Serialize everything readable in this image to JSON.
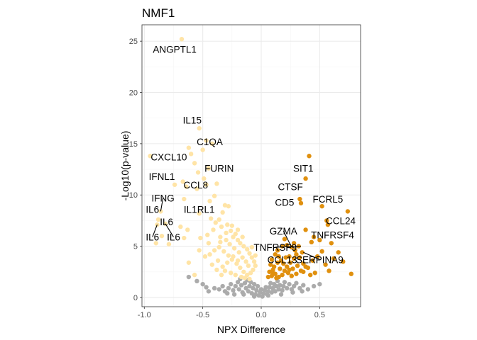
{
  "chart_data": {
    "type": "scatter",
    "title": "NMF1",
    "xlabel": "NPX Difference",
    "ylabel": "-Log10(p-value)",
    "xlim": [
      -1.02,
      0.85
    ],
    "ylim": [
      -0.9,
      26.6
    ],
    "x_ticks": [
      -1.0,
      -0.5,
      0.0,
      0.5
    ],
    "x_tick_labels": [
      "-1.0",
      "-0.5",
      "0.0",
      "0.5"
    ],
    "y_ticks": [
      0,
      5,
      10,
      15,
      20,
      25
    ],
    "y_tick_labels": [
      "0",
      "5",
      "10",
      "15",
      "20",
      "25"
    ],
    "grid": true,
    "legend": "none",
    "colors": {
      "down": "#FFE4A6",
      "up": "#E0900E",
      "ns": "#ABABAB"
    },
    "series": [
      {
        "group": "up",
        "points": [
          [
            0.41,
            13.8
          ],
          [
            0.38,
            11.6
          ],
          [
            0.33,
            9.6
          ],
          [
            0.34,
            9.2
          ],
          [
            0.52,
            8.9
          ],
          [
            0.56,
            7.5
          ],
          [
            0.57,
            7.1
          ],
          [
            0.74,
            8.4
          ],
          [
            0.38,
            6.6
          ],
          [
            0.45,
            5.9
          ],
          [
            0.5,
            5.6
          ],
          [
            0.6,
            5.3
          ],
          [
            0.43,
            5.4
          ],
          [
            0.32,
            5.0
          ],
          [
            0.28,
            5.3
          ],
          [
            0.26,
            4.9
          ],
          [
            0.2,
            5.7
          ],
          [
            0.18,
            5.0
          ],
          [
            0.14,
            4.6
          ],
          [
            0.12,
            4.2
          ],
          [
            0.09,
            3.7
          ],
          [
            0.08,
            3.2
          ],
          [
            0.1,
            2.7
          ],
          [
            0.12,
            2.3
          ],
          [
            0.15,
            2.0
          ],
          [
            0.18,
            2.2
          ],
          [
            0.2,
            2.6
          ],
          [
            0.22,
            3.0
          ],
          [
            0.25,
            3.4
          ],
          [
            0.28,
            3.8
          ],
          [
            0.3,
            4.2
          ],
          [
            0.33,
            3.9
          ],
          [
            0.36,
            3.3
          ],
          [
            0.4,
            2.9
          ],
          [
            0.44,
            3.6
          ],
          [
            0.48,
            4.0
          ],
          [
            0.52,
            4.5
          ],
          [
            0.55,
            3.2
          ],
          [
            0.58,
            2.6
          ],
          [
            0.62,
            3.8
          ],
          [
            0.66,
            4.4
          ],
          [
            0.7,
            3.5
          ],
          [
            0.77,
            2.3
          ],
          [
            0.46,
            2.4
          ],
          [
            0.42,
            2.2
          ],
          [
            0.36,
            2.5
          ],
          [
            0.3,
            2.3
          ],
          [
            0.26,
            2.1
          ],
          [
            0.23,
            2.4
          ],
          [
            0.16,
            2.8
          ],
          [
            0.14,
            3.4
          ],
          [
            0.11,
            3.0
          ],
          [
            0.07,
            2.5
          ],
          [
            0.09,
            2.1
          ],
          [
            0.13,
            1.9
          ],
          [
            0.24,
            4.0
          ],
          [
            0.29,
            4.6
          ],
          [
            0.35,
            4.4
          ],
          [
            0.19,
            3.3
          ],
          [
            0.21,
            3.9
          ],
          [
            0.17,
            3.6
          ],
          [
            0.27,
            2.8
          ],
          [
            0.31,
            3.1
          ],
          [
            0.38,
            3.0
          ],
          [
            0.06,
            2.0
          ],
          [
            0.1,
            2.4
          ],
          [
            0.22,
            5.1
          ],
          [
            0.15,
            4.0
          ],
          [
            0.34,
            2.6
          ],
          [
            0.24,
            2.7
          ]
        ]
      },
      {
        "group": "down",
        "points": [
          [
            -0.68,
            25.2
          ],
          [
            -0.53,
            16.5
          ],
          [
            -0.47,
            15.3
          ],
          [
            -0.42,
            15.0
          ],
          [
            -0.62,
            14.6
          ],
          [
            -0.5,
            14.4
          ],
          [
            -0.6,
            14.0
          ],
          [
            -0.95,
            13.8
          ],
          [
            -0.57,
            13.1
          ],
          [
            -0.45,
            12.6
          ],
          [
            -0.54,
            12.2
          ],
          [
            -0.49,
            11.6
          ],
          [
            -0.47,
            11.0
          ],
          [
            -0.67,
            11.3
          ],
          [
            -0.74,
            11.0
          ],
          [
            -0.64,
            10.8
          ],
          [
            -0.55,
            10.6
          ],
          [
            -0.38,
            11.1
          ],
          [
            -0.66,
            9.6
          ],
          [
            -0.4,
            9.9
          ],
          [
            -0.44,
            9.4
          ],
          [
            -0.31,
            9.0
          ],
          [
            -0.28,
            8.9
          ],
          [
            -0.86,
            8.4
          ],
          [
            -0.53,
            8.2
          ],
          [
            -0.33,
            8.3
          ],
          [
            -0.88,
            7.6
          ],
          [
            -0.82,
            7.2
          ],
          [
            -0.89,
            7.1
          ],
          [
            -0.69,
            6.9
          ],
          [
            -0.63,
            6.6
          ],
          [
            -0.43,
            7.7
          ],
          [
            -0.39,
            7.3
          ],
          [
            -0.36,
            7.6
          ],
          [
            -0.34,
            6.9
          ],
          [
            -0.41,
            6.6
          ],
          [
            -0.29,
            7.1
          ],
          [
            -0.26,
            6.5
          ],
          [
            -0.22,
            6.2
          ],
          [
            -0.46,
            6.1
          ],
          [
            -0.52,
            5.8
          ],
          [
            -0.66,
            5.8
          ],
          [
            -0.85,
            6.0
          ],
          [
            -0.9,
            5.3
          ],
          [
            -0.79,
            5.2
          ],
          [
            -0.35,
            5.9
          ],
          [
            -0.3,
            5.6
          ],
          [
            -0.24,
            5.9
          ],
          [
            -0.2,
            5.6
          ],
          [
            -0.18,
            5.3
          ],
          [
            -0.15,
            5.0
          ],
          [
            -0.12,
            4.7
          ],
          [
            -0.1,
            4.3
          ],
          [
            -0.08,
            3.9
          ],
          [
            -0.06,
            3.5
          ],
          [
            -0.05,
            3.1
          ],
          [
            -0.07,
            2.7
          ],
          [
            -0.09,
            2.4
          ],
          [
            -0.12,
            2.2
          ],
          [
            -0.15,
            2.5
          ],
          [
            -0.18,
            2.9
          ],
          [
            -0.21,
            3.3
          ],
          [
            -0.25,
            3.7
          ],
          [
            -0.28,
            4.1
          ],
          [
            -0.32,
            4.5
          ],
          [
            -0.36,
            4.9
          ],
          [
            -0.4,
            4.6
          ],
          [
            -0.44,
            4.2
          ],
          [
            -0.27,
            5.2
          ],
          [
            -0.23,
            4.8
          ],
          [
            -0.19,
            4.4
          ],
          [
            -0.16,
            3.9
          ],
          [
            -0.13,
            3.5
          ],
          [
            -0.11,
            3.1
          ],
          [
            -0.2,
            3.6
          ],
          [
            -0.24,
            4.0
          ],
          [
            -0.29,
            3.4
          ],
          [
            -0.33,
            3.0
          ],
          [
            -0.37,
            3.6
          ],
          [
            -0.31,
            2.6
          ],
          [
            -0.26,
            2.4
          ],
          [
            -0.22,
            2.2
          ],
          [
            -0.17,
            2.0
          ],
          [
            -0.14,
            1.9
          ],
          [
            -0.1,
            1.8
          ],
          [
            -0.62,
            3.4
          ],
          [
            -0.57,
            2.2
          ],
          [
            -0.48,
            4.0
          ],
          [
            -0.53,
            4.6
          ],
          [
            -0.42,
            3.2
          ],
          [
            -0.38,
            2.7
          ],
          [
            -0.34,
            2.2
          ],
          [
            -0.2,
            6.6
          ],
          [
            -0.25,
            7.0
          ],
          [
            -0.16,
            5.9
          ],
          [
            -0.08,
            4.9
          ],
          [
            -0.05,
            4.1
          ],
          [
            -0.3,
            6.3
          ],
          [
            -0.35,
            5.4
          ],
          [
            -0.45,
            5.3
          ]
        ]
      },
      {
        "group": "ns",
        "points": [
          [
            -0.47,
            1.0
          ],
          [
            -0.45,
            0.6
          ],
          [
            -0.4,
            0.9
          ],
          [
            -0.36,
            0.8
          ],
          [
            -0.33,
            1.1
          ],
          [
            -0.31,
            0.6
          ],
          [
            -0.28,
            0.9
          ],
          [
            -0.26,
            1.3
          ],
          [
            -0.24,
            0.7
          ],
          [
            -0.22,
            1.1
          ],
          [
            -0.2,
            1.5
          ],
          [
            -0.19,
            0.8
          ],
          [
            -0.17,
            1.2
          ],
          [
            -0.16,
            0.5
          ],
          [
            -0.14,
            1.4
          ],
          [
            -0.13,
            0.9
          ],
          [
            -0.12,
            1.7
          ],
          [
            -0.11,
            0.6
          ],
          [
            -0.1,
            1.1
          ],
          [
            -0.09,
            1.5
          ],
          [
            -0.08,
            0.4
          ],
          [
            -0.07,
            0.9
          ],
          [
            -0.06,
            1.3
          ],
          [
            -0.05,
            0.3
          ],
          [
            -0.04,
            0.7
          ],
          [
            -0.03,
            1.1
          ],
          [
            -0.02,
            0.2
          ],
          [
            -0.01,
            0.5
          ],
          [
            0.0,
            0.8
          ],
          [
            0.01,
            0.1
          ],
          [
            0.02,
            0.4
          ],
          [
            0.03,
            0.7
          ],
          [
            0.04,
            1.0
          ],
          [
            0.05,
            0.3
          ],
          [
            0.06,
            0.6
          ],
          [
            0.07,
            1.0
          ],
          [
            0.08,
            1.4
          ],
          [
            0.09,
            0.5
          ],
          [
            0.1,
            0.9
          ],
          [
            0.11,
            1.3
          ],
          [
            0.12,
            0.6
          ],
          [
            0.13,
            1.1
          ],
          [
            0.14,
            1.6
          ],
          [
            0.15,
            0.8
          ],
          [
            0.16,
            1.2
          ],
          [
            0.18,
            0.7
          ],
          [
            0.19,
            1.1
          ],
          [
            0.2,
            1.5
          ],
          [
            0.22,
            0.9
          ],
          [
            0.24,
            1.3
          ],
          [
            0.26,
            0.8
          ],
          [
            0.28,
            1.1
          ],
          [
            0.3,
            1.4
          ],
          [
            0.33,
            0.9
          ],
          [
            0.36,
            1.2
          ],
          [
            0.4,
            0.8
          ],
          [
            0.45,
            1.1
          ],
          [
            0.5,
            1.3
          ],
          [
            -0.5,
            1.3
          ],
          [
            -0.55,
            1.6
          ],
          [
            -0.62,
            2.0
          ],
          [
            -0.18,
            1.8
          ],
          [
            -0.15,
            0.3
          ],
          [
            -0.06,
            0.1
          ],
          [
            0.06,
            0.2
          ],
          [
            0.17,
            0.3
          ],
          [
            -0.29,
            0.4
          ],
          [
            -0.23,
            0.3
          ],
          [
            0.27,
            0.5
          ],
          [
            0.35,
            0.6
          ]
        ]
      }
    ],
    "labels": [
      {
        "text": "ANGPTL1",
        "point": [
          -0.68,
          25.2
        ],
        "pos": [
          -0.74,
          24.2
        ],
        "line": false
      },
      {
        "text": "IL15",
        "point": [
          -0.53,
          16.5
        ],
        "pos": [
          -0.59,
          17.3
        ],
        "line": false
      },
      {
        "text": "C1QA",
        "point": [
          -0.47,
          15.3
        ],
        "pos": [
          -0.44,
          15.2
        ],
        "line": false
      },
      {
        "text": "CXCL10",
        "point": [
          -0.95,
          13.8
        ],
        "pos": [
          -0.79,
          13.7
        ],
        "line": false
      },
      {
        "text": "FURIN",
        "point": [
          -0.47,
          11.0
        ],
        "pos": [
          -0.36,
          12.6
        ],
        "line": false
      },
      {
        "text": "IFNL1",
        "point": [
          -0.74,
          11.0
        ],
        "pos": [
          -0.85,
          11.8
        ],
        "line": false
      },
      {
        "text": "CCL8",
        "point": [
          -0.64,
          10.8
        ],
        "pos": [
          -0.56,
          11.0
        ],
        "line": false
      },
      {
        "text": "IFNG",
        "point": [
          -0.86,
          8.4
        ],
        "pos": [
          -0.84,
          9.7
        ],
        "line": true
      },
      {
        "text": "IL1RL1",
        "point": [
          -0.53,
          8.2
        ],
        "pos": [
          -0.53,
          8.6
        ],
        "line": false
      },
      {
        "text": "IL6",
        "point": [
          -0.88,
          7.6
        ],
        "pos": [
          -0.93,
          8.6
        ],
        "line": false
      },
      {
        "text": "IL6",
        "point": [
          -0.89,
          7.1
        ],
        "pos": [
          -0.81,
          7.4
        ],
        "line": false
      },
      {
        "text": "IL6",
        "point": [
          -0.89,
          7.1
        ],
        "pos": [
          -0.93,
          5.9
        ],
        "line": true
      },
      {
        "text": "IL6",
        "point": [
          -0.82,
          7.2
        ],
        "pos": [
          -0.75,
          5.9
        ],
        "line": true
      },
      {
        "text": "SIT1",
        "point": [
          0.41,
          13.8
        ],
        "pos": [
          0.36,
          12.6
        ],
        "line": false
      },
      {
        "text": "CTSF",
        "point": [
          0.38,
          11.6
        ],
        "pos": [
          0.25,
          10.8
        ],
        "line": false
      },
      {
        "text": "CD5",
        "point": [
          0.34,
          9.2
        ],
        "pos": [
          0.2,
          9.3
        ],
        "line": false
      },
      {
        "text": "FCRL5",
        "point": [
          0.52,
          8.9
        ],
        "pos": [
          0.57,
          9.6
        ],
        "line": false
      },
      {
        "text": "CCL24",
        "point": [
          0.74,
          8.4
        ],
        "pos": [
          0.68,
          7.5
        ],
        "line": false
      },
      {
        "text": "GZMA",
        "point": [
          0.26,
          4.9
        ],
        "pos": [
          0.19,
          6.5
        ],
        "line": true
      },
      {
        "text": "TNFRSF4",
        "point": [
          0.6,
          5.3
        ],
        "pos": [
          0.61,
          6.1
        ],
        "line": false
      },
      {
        "text": "TNFRSF9",
        "point": [
          0.34,
          5.0
        ],
        "pos": [
          0.12,
          4.9
        ],
        "line": true
      },
      {
        "text": "CCL13",
        "point": [
          0.38,
          3.2
        ],
        "pos": [
          0.18,
          3.7
        ],
        "line": false
      },
      {
        "text": "SERPINA9",
        "point": [
          0.36,
          4.4
        ],
        "pos": [
          0.5,
          3.7
        ],
        "line": true
      }
    ]
  }
}
